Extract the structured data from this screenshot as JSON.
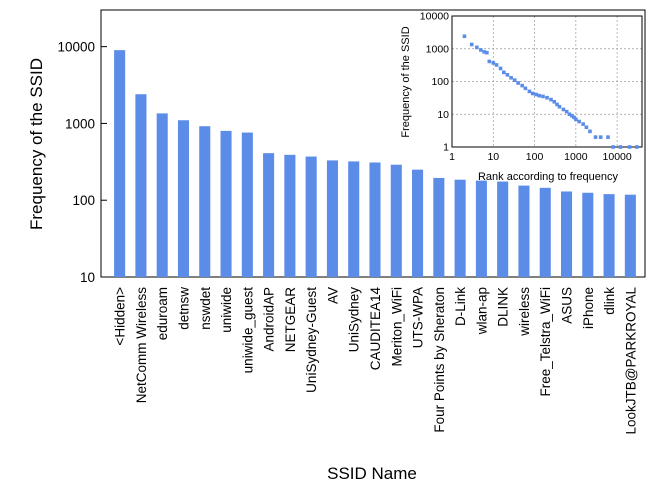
{
  "chart_data": [
    {
      "type": "bar",
      "xlabel": "SSID Name",
      "ylabel": "Frequency of the SSID",
      "yscale": "log",
      "ylim": [
        10,
        30000
      ],
      "yticks": [
        10,
        100,
        1000,
        10000
      ],
      "bar_color": "#5b8ce8",
      "grid": false,
      "categories": [
        "<Hidden>",
        "NetComm Wireless",
        "eduroam",
        "detnsw",
        "nswdet",
        "uniwide",
        "uniwide_guest",
        "AndroidAP",
        "NETGEAR",
        "UniSydney-Guest",
        "AV",
        "UniSydney",
        "CAUDITEA14",
        "Meriton_WiFi",
        "UTS-WPA",
        "Four Points by Sheraton",
        "D-Link",
        "wlan-ap",
        "DLINK",
        "wireless",
        "Free_Telstra_WiFi",
        "ASUS",
        "iPhone",
        "dlink",
        "LookJTB@PARKROYAL"
      ],
      "values": [
        9000,
        2400,
        1350,
        1100,
        920,
        800,
        760,
        410,
        390,
        370,
        330,
        320,
        310,
        290,
        250,
        195,
        185,
        180,
        175,
        155,
        145,
        130,
        125,
        120,
        118
      ]
    },
    {
      "type": "scatter",
      "xlabel": "Rank according to frequency",
      "ylabel": "Frequency of the SSID",
      "xscale": "log",
      "yscale": "log",
      "xlim": [
        1,
        40000
      ],
      "ylim": [
        1,
        10000
      ],
      "xticks": [
        1,
        10,
        100,
        1000,
        10000
      ],
      "yticks": [
        1,
        10,
        100,
        1000,
        10000
      ],
      "grid": true,
      "marker_color": "#5b8ce8",
      "points": [
        [
          2,
          2400
        ],
        [
          3,
          1350
        ],
        [
          4,
          1100
        ],
        [
          5,
          920
        ],
        [
          6,
          800
        ],
        [
          7,
          760
        ],
        [
          8,
          410
        ],
        [
          10,
          370
        ],
        [
          12,
          320
        ],
        [
          15,
          250
        ],
        [
          18,
          190
        ],
        [
          22,
          160
        ],
        [
          27,
          130
        ],
        [
          33,
          110
        ],
        [
          40,
          90
        ],
        [
          50,
          75
        ],
        [
          60,
          62
        ],
        [
          75,
          50
        ],
        [
          90,
          43
        ],
        [
          110,
          40
        ],
        [
          130,
          37
        ],
        [
          160,
          35
        ],
        [
          200,
          32
        ],
        [
          250,
          28
        ],
        [
          300,
          24
        ],
        [
          350,
          20
        ],
        [
          400,
          17
        ],
        [
          500,
          14
        ],
        [
          600,
          12
        ],
        [
          700,
          10
        ],
        [
          800,
          9
        ],
        [
          900,
          8
        ],
        [
          1000,
          7
        ],
        [
          1200,
          6
        ],
        [
          1500,
          5
        ],
        [
          1800,
          4
        ],
        [
          2200,
          3
        ],
        [
          3000,
          2
        ],
        [
          4000,
          2
        ],
        [
          6000,
          2
        ],
        [
          8000,
          1
        ],
        [
          12000,
          1
        ],
        [
          20000,
          1
        ],
        [
          30000,
          1
        ]
      ]
    }
  ]
}
